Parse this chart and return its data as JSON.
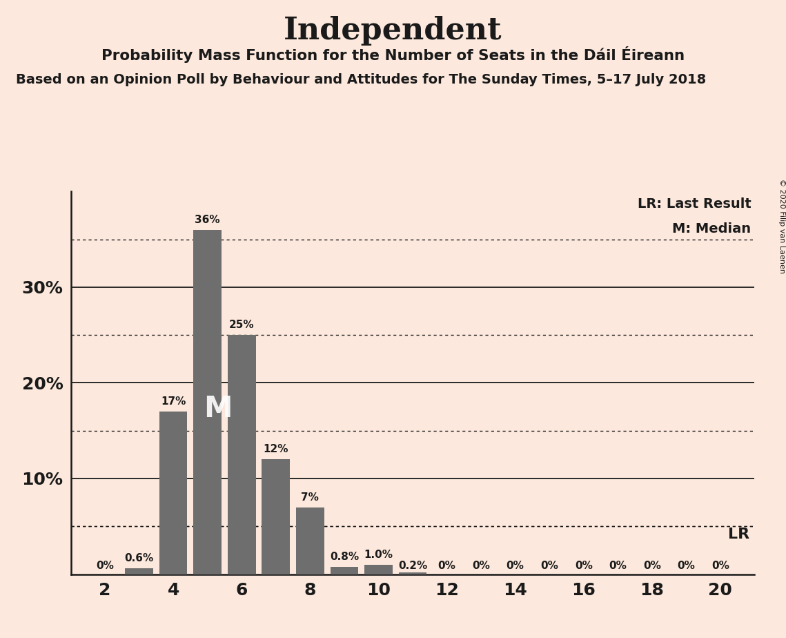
{
  "title": "Independent",
  "subtitle": "Probability Mass Function for the Number of Seats in the Dáil Éireann",
  "subtitle2": "Based on an Opinion Poll by Behaviour and Attitudes for The Sunday Times, 5–17 July 2018",
  "copyright": "© 2020 Filip van Laenen",
  "legend_lr": "LR: Last Result",
  "legend_m": "M: Median",
  "background_color": "#fce8dc",
  "bar_color": "#6e6e6e",
  "x_values": [
    2,
    3,
    4,
    5,
    6,
    7,
    8,
    9,
    10,
    11,
    12,
    13,
    14,
    15,
    16,
    17,
    18,
    19,
    20
  ],
  "y_values": [
    0.0,
    0.6,
    17.0,
    36.0,
    25.0,
    12.0,
    7.0,
    0.8,
    1.0,
    0.2,
    0.0,
    0.0,
    0.0,
    0.0,
    0.0,
    0.0,
    0.0,
    0.0,
    0.0
  ],
  "bar_labels": [
    "0%",
    "0.6%",
    "17%",
    "36%",
    "25%",
    "12%",
    "7%",
    "0.8%",
    "1.0%",
    "0.2%",
    "0%",
    "0%",
    "0%",
    "0%",
    "0%",
    "0%",
    "0%",
    "0%",
    "0%"
  ],
  "median_x": 5,
  "lr_y": 5.0,
  "xlim": [
    1,
    21
  ],
  "ylim": [
    0,
    40
  ],
  "xticks": [
    2,
    4,
    6,
    8,
    10,
    12,
    14,
    16,
    18,
    20
  ],
  "yticks": [
    0,
    10,
    20,
    30
  ],
  "ytick_labels": [
    "",
    "10%",
    "20%",
    "30%"
  ],
  "dotted_yticks": [
    5,
    15,
    25,
    35
  ],
  "solid_yticks": [
    10,
    20,
    30
  ]
}
